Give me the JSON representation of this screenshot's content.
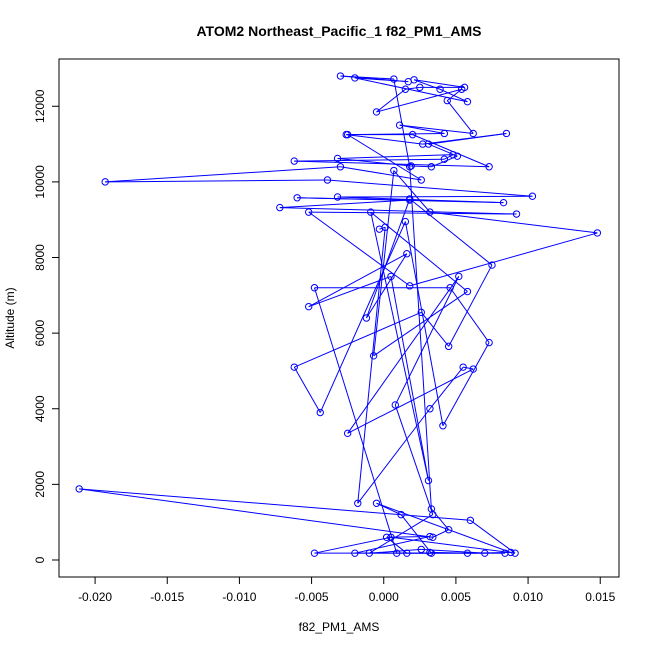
{
  "chart_data": {
    "type": "scatter",
    "title": "ATOM2 Northeast_Pacific_1 f82_PM1_AMS",
    "xlabel": "f82_PM1_AMS",
    "ylabel": "Altitude (m)",
    "xlim": [
      -0.0225,
      0.0163
    ],
    "ylim": [
      -450,
      13250
    ],
    "x_ticks": [
      -0.02,
      -0.015,
      -0.01,
      -0.005,
      0.0,
      0.005,
      0.01,
      0.015
    ],
    "x_tick_labels": [
      "-0.020",
      "-0.015",
      "-0.010",
      "-0.005",
      "0.000",
      "0.005",
      "0.010",
      "0.015"
    ],
    "y_ticks": [
      0,
      2000,
      4000,
      6000,
      8000,
      10000,
      12000
    ],
    "y_tick_labels": [
      "0",
      "2000",
      "4000",
      "6000",
      "8000",
      "10000",
      "12000"
    ],
    "grid": false,
    "color": "#0000ff",
    "series": [
      {
        "style": "points-and-lines",
        "x": [
          0.0032,
          0.0058,
          0.0088,
          -0.0005,
          0.0012,
          0.0033,
          0.0009,
          -0.0048,
          0.0046,
          0.0073,
          0.0041,
          0.0015,
          -0.0044,
          -0.0062,
          0.0026,
          0.0045,
          0.0075,
          0.0018,
          -0.0012,
          0.0016,
          -0.0052,
          0.0005,
          0.0031,
          -0.0009,
          0.0058,
          -0.0007,
          0.0007,
          0.0032,
          0.0148,
          0.0018,
          -0.0052,
          0.0092,
          -0.0072,
          0.0018,
          -0.006,
          0.0083,
          -0.0032,
          0.0103,
          -0.0039,
          -0.0193,
          -0.003,
          0.0026,
          -0.0025,
          0.002,
          0.0073,
          -0.0062,
          0.0042,
          0.0048,
          -0.0032,
          0.0019,
          0.0033,
          0.0051,
          0.0031,
          0.0085,
          0.0027,
          -0.0026,
          0.0042,
          0.0011,
          0.0062,
          0.0044,
          0.0054,
          -0.0005,
          0.0015,
          0.0025,
          0.0056,
          0.0021,
          0.0039,
          0.0058,
          -0.002,
          0.0017,
          -0.003,
          0.0007,
          0.0018,
          0.0033,
          0.0045,
          0.0034,
          -0.0211,
          0.006,
          0.0091,
          0.0005,
          -0.0048,
          0.0084,
          0.0016,
          0.0002,
          0.0032,
          -0.002,
          0.007,
          0.0026,
          -0.001,
          0.0034,
          0.0008,
          0.0052,
          -0.0025,
          0.0062,
          0.0055,
          0.0032,
          -0.0018,
          0.0001,
          -0.0003
        ],
        "y": [
          200,
          180,
          200,
          1500,
          1200,
          180,
          180,
          7200,
          7200,
          5750,
          3550,
          8950,
          3900,
          5100,
          6550,
          5650,
          7800,
          9550,
          6400,
          8100,
          6700,
          7500,
          2100,
          9200,
          7100,
          5400,
          10300,
          9200,
          8650,
          7250,
          9200,
          9150,
          9320,
          9520,
          9580,
          9450,
          9600,
          9620,
          10050,
          10000,
          10400,
          10050,
          11250,
          11250,
          10400,
          10550,
          10600,
          10720,
          10620,
          10420,
          10400,
          10680,
          11000,
          11280,
          11000,
          11250,
          11280,
          11500,
          11280,
          12150,
          12450,
          11850,
          12450,
          12500,
          12500,
          12700,
          12450,
          12120,
          12750,
          12650,
          12800,
          12720,
          10400,
          1350,
          800,
          600,
          1880,
          1050,
          180,
          600,
          180,
          180,
          180,
          600,
          620,
          180,
          180,
          280,
          180,
          1200,
          4100,
          7500,
          3350,
          5050,
          5100,
          4000,
          1500,
          8800,
          8750
        ]
      }
    ]
  }
}
